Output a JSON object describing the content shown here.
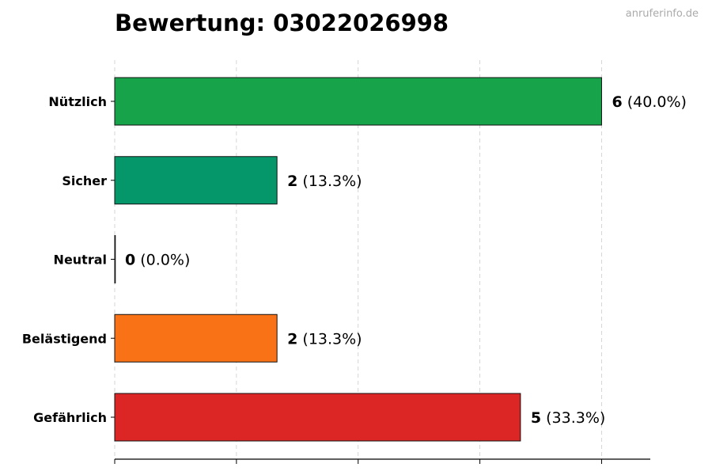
{
  "title": "Bewertung: 03022026998",
  "watermark": "anruferinfo.de",
  "chart_data": {
    "type": "bar",
    "orientation": "horizontal",
    "title": "Bewertung: 03022026998",
    "xlabel": "",
    "ylabel": "",
    "xlim": [
      0,
      6.6
    ],
    "xticks": [
      0,
      1.5,
      3,
      4.5,
      6
    ],
    "grid": "x-dashed",
    "categories": [
      "Nützlich",
      "Sicher",
      "Neutral",
      "Belästigend",
      "Gefährlich"
    ],
    "values": [
      6,
      2,
      0,
      2,
      5
    ],
    "percent_labels": [
      "(40.0%)",
      "(13.3%)",
      "(0.0%)",
      "(13.3%)",
      "(33.3%)"
    ],
    "colors": [
      "#16a34a",
      "#059669",
      "#9ca3af",
      "#f97316",
      "#dc2626"
    ]
  }
}
